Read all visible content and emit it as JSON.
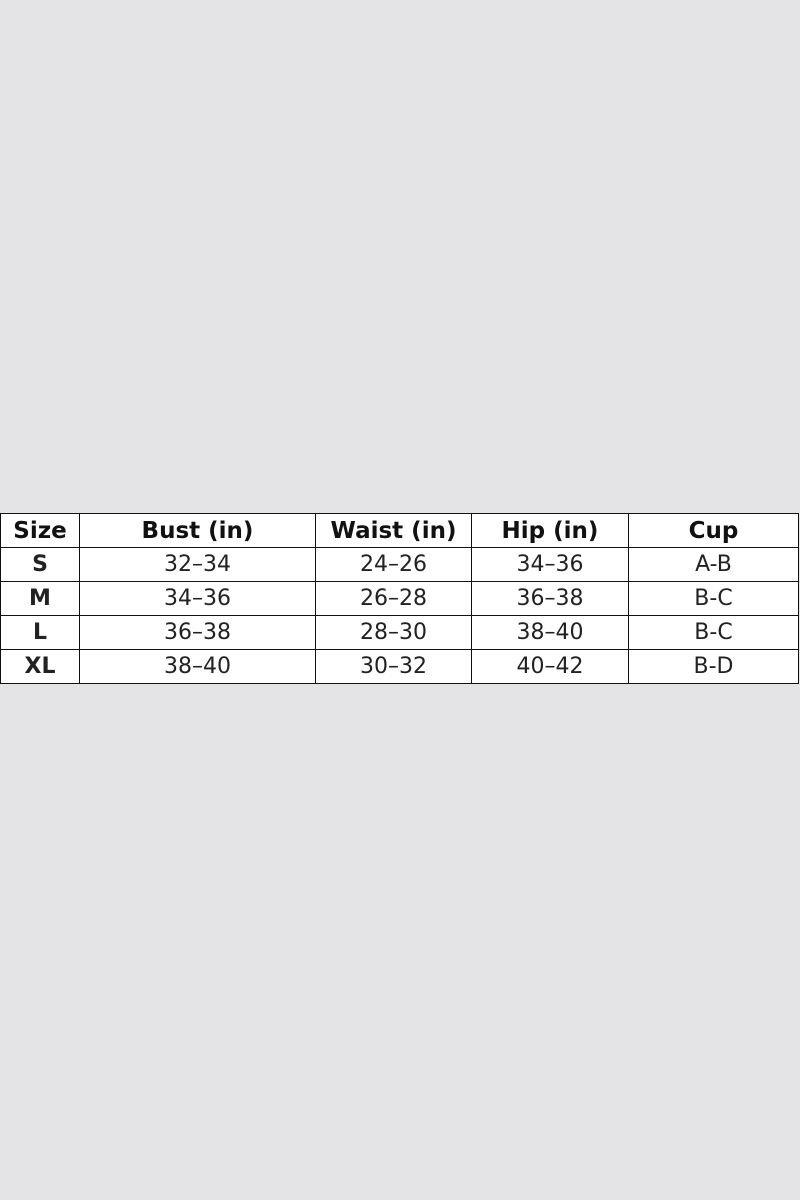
{
  "table": {
    "header": [
      "Size",
      "Bust (in)",
      "Waist (in)",
      "Hip (in)",
      "Cup"
    ],
    "rows": [
      [
        "S",
        "32–34",
        "24–26",
        "34–36",
        "A-B"
      ],
      [
        "M",
        "34–36",
        "26–28",
        "36–38",
        "B-C"
      ],
      [
        "L",
        "36–38",
        "28–30",
        "38–40",
        "B-C"
      ],
      [
        "XL",
        "38–40",
        "30–32",
        "40–42",
        "B-D"
      ]
    ]
  }
}
